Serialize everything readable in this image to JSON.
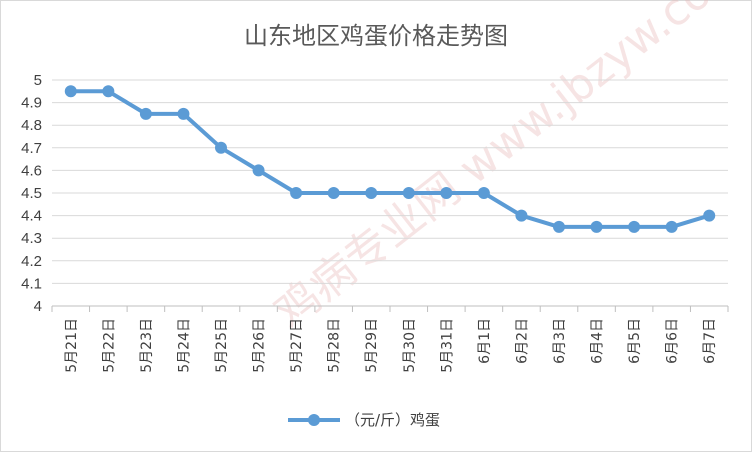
{
  "chart_data": {
    "type": "line",
    "title": "山东地区鸡蛋价格走势图",
    "categories": [
      "5月21日",
      "5月22日",
      "5月23日",
      "5月24日",
      "5月25日",
      "5月26日",
      "5月27日",
      "5月28日",
      "5月29日",
      "5月30日",
      "5月31日",
      "6月1日",
      "6月2日",
      "6月3日",
      "6月4日",
      "6月5日",
      "6月6日",
      "6月7日"
    ],
    "series": [
      {
        "name": "（元/斤）鸡蛋",
        "values": [
          4.95,
          4.95,
          4.85,
          4.85,
          4.7,
          4.6,
          4.5,
          4.5,
          4.5,
          4.5,
          4.5,
          4.5,
          4.4,
          4.35,
          4.35,
          4.35,
          4.35,
          4.4
        ],
        "color": "#5b9bd5"
      }
    ],
    "ylim": [
      4,
      5
    ],
    "yticks": [
      "4",
      "4.1",
      "4.2",
      "4.3",
      "4.4",
      "4.5",
      "4.6",
      "4.7",
      "4.8",
      "4.9",
      "5"
    ],
    "grid": true,
    "legend": "bottom",
    "xlabel": "",
    "ylabel": ""
  },
  "watermark": "鸡病专业网 www.jbzyw.com"
}
